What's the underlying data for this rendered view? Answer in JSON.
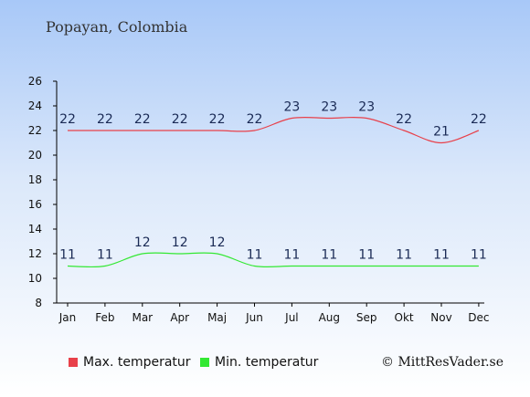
{
  "location": "Popayan, Colombia",
  "credit": "© MittResVader.se",
  "colors": {
    "max": "#e8404a",
    "min": "#33e833"
  },
  "chart_data": {
    "type": "line",
    "categories": [
      "Jan",
      "Feb",
      "Mar",
      "Apr",
      "Maj",
      "Jun",
      "Jul",
      "Aug",
      "Sep",
      "Okt",
      "Nov",
      "Dec"
    ],
    "ylim": [
      8,
      26
    ],
    "yticks": [
      8,
      10,
      12,
      14,
      16,
      18,
      20,
      22,
      24,
      26
    ],
    "grid": false,
    "legend_position": "bottom",
    "series": [
      {
        "name": "Max. temperatur",
        "values": [
          22,
          22,
          22,
          22,
          22,
          22,
          23,
          23,
          23,
          22,
          21,
          22
        ],
        "color": "#e8404a"
      },
      {
        "name": "Min. temperatur",
        "values": [
          11,
          11,
          12,
          12,
          12,
          11,
          11,
          11,
          11,
          11,
          11,
          11
        ],
        "color": "#33e833"
      }
    ]
  }
}
